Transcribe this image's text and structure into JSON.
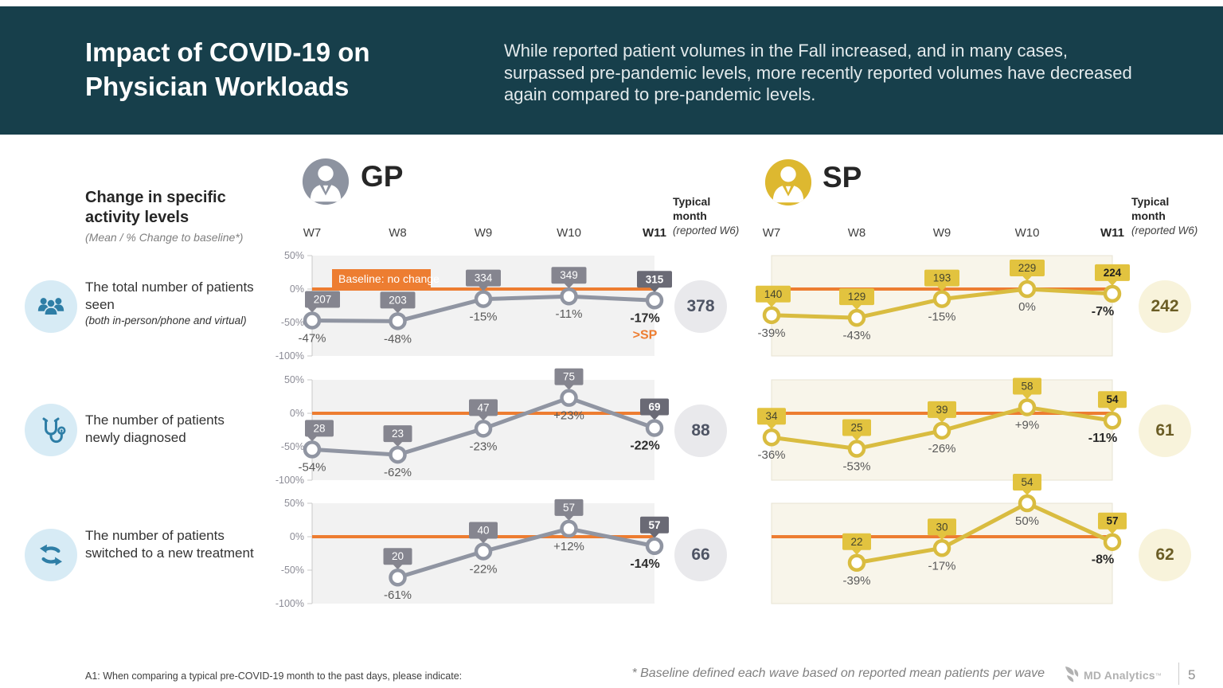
{
  "header": {
    "title_line1": "Impact of COVID-19 on",
    "title_line2": "Physician Workloads",
    "subtitle": "While reported patient volumes in the Fall increased, and in many cases, surpassed pre-pandemic levels, more recently reported volumes have decreased again compared to pre-pandemic levels."
  },
  "left_panel": {
    "heading": "Change in specific activity levels",
    "subheading": "(Mean / % Change to baseline*)",
    "activities": [
      {
        "label": "The total number of patients seen",
        "sublabel": "(both in-person/phone and virtual)",
        "icon": "patients-group-icon"
      },
      {
        "label": "The number of patients newly diagnosed",
        "icon": "stethoscope-icon"
      },
      {
        "label": "The number of patients switched to a new treatment",
        "icon": "switch-arrows-icon"
      }
    ]
  },
  "groups": {
    "gp": {
      "label": "GP"
    },
    "sp": {
      "label": "SP"
    }
  },
  "waves": [
    "W7",
    "W8",
    "W9",
    "W10",
    "W11"
  ],
  "typical_month": {
    "title_line1": "Typical",
    "title_line2": "month",
    "subtitle": "(reported W6)",
    "gp_values": [
      378,
      88,
      66
    ],
    "sp_values": [
      242,
      61,
      62
    ]
  },
  "chart_data": [
    {
      "group": "GP",
      "activity": "The total number of patients seen",
      "type": "line",
      "x": [
        "W7",
        "W8",
        "W9",
        "W10",
        "W11"
      ],
      "counts": [
        207,
        203,
        334,
        349,
        315
      ],
      "pct_change": [
        -47,
        -48,
        -15,
        -11,
        -17
      ],
      "pct_labels": [
        "-47%",
        "-48%",
        "-15%",
        "-11%",
        "-17%"
      ],
      "ylim": [
        -100,
        50
      ],
      "yticks": [
        "50%",
        "0%",
        "-50%",
        "-100%"
      ],
      "baseline_pct": 0,
      "baseline_label": "Baseline: no change",
      "annotation": ">SP",
      "typical_month_w6": 378
    },
    {
      "group": "GP",
      "activity": "The number of patients newly diagnosed",
      "type": "line",
      "x": [
        "W7",
        "W8",
        "W9",
        "W10",
        "W11"
      ],
      "counts": [
        28,
        23,
        47,
        75,
        69
      ],
      "pct_change": [
        -54,
        -62,
        -23,
        23,
        -22
      ],
      "pct_labels": [
        "-54%",
        "-62%",
        "-23%",
        "+23%",
        "-22%"
      ],
      "ylim": [
        -100,
        50
      ],
      "yticks": [
        "50%",
        "0%",
        "-50%",
        "-100%"
      ],
      "baseline_pct": 0,
      "typical_month_w6": 88
    },
    {
      "group": "GP",
      "activity": "The number of patients switched to a new treatment",
      "type": "line",
      "x": [
        "W7",
        "W8",
        "W9",
        "W10",
        "W11"
      ],
      "counts": [
        null,
        20,
        40,
        57,
        57
      ],
      "pct_change": [
        null,
        -61,
        -22,
        12,
        -14
      ],
      "pct_labels": [
        null,
        "-61%",
        "-22%",
        "+12%",
        "-14%"
      ],
      "ylim": [
        -100,
        50
      ],
      "yticks": [
        "50%",
        "0%",
        "-50%",
        "-100%"
      ],
      "baseline_pct": 0,
      "typical_month_w6": 66
    },
    {
      "group": "SP",
      "activity": "The total number of patients seen",
      "type": "line",
      "x": [
        "W7",
        "W8",
        "W9",
        "W10",
        "W11"
      ],
      "counts": [
        140,
        129,
        193,
        229,
        224
      ],
      "pct_change": [
        -39,
        -43,
        -15,
        0,
        -7
      ],
      "pct_labels": [
        "-39%",
        "-43%",
        "-15%",
        "0%",
        "-7%"
      ],
      "ylim": [
        -100,
        50
      ],
      "baseline_pct": 0,
      "typical_month_w6": 242
    },
    {
      "group": "SP",
      "activity": "The number of patients newly diagnosed",
      "type": "line",
      "x": [
        "W7",
        "W8",
        "W9",
        "W10",
        "W11"
      ],
      "counts": [
        34,
        25,
        39,
        58,
        54
      ],
      "pct_change": [
        -36,
        -53,
        -26,
        9,
        -11
      ],
      "pct_labels": [
        "-36%",
        "-53%",
        "-26%",
        "+9%",
        "-11%"
      ],
      "ylim": [
        -100,
        50
      ],
      "baseline_pct": 0,
      "typical_month_w6": 61
    },
    {
      "group": "SP",
      "activity": "The number of patients switched to a new treatment",
      "type": "line",
      "x": [
        "W7",
        "W8",
        "W9",
        "W10",
        "W11"
      ],
      "counts": [
        null,
        22,
        30,
        54,
        57
      ],
      "pct_change": [
        null,
        -39,
        -17,
        50,
        -8
      ],
      "pct_labels": [
        null,
        "-39%",
        "-17%",
        "50%",
        "-8%"
      ],
      "ylim": [
        -100,
        50
      ],
      "baseline_pct": 0,
      "typical_month_w6": 62
    }
  ],
  "colors": {
    "header_bg": "#173F4B",
    "baseline_orange": "#ED7D31",
    "gp_line": "#9095A2",
    "gp_badge": "#85858F",
    "gp_badge_final": "#6A6A75",
    "gp_plot_bg": "#F2F2F2",
    "gp_avatar": "#8D93A0",
    "sp_line": "#D9BC40",
    "sp_badge": "#E2C33F",
    "sp_plot_bg": "#F8F5EA",
    "sp_avatar": "#DDB830",
    "icon_blue": "#2E7EA6",
    "icon_circle_bg": "#D7EBF5"
  },
  "footer": {
    "question": "A1: When comparing a typical pre-COVID-19 month to the past days, please indicate:",
    "baseline_note": "* Baseline defined each wave based on reported mean patients per wave",
    "brand": "MD Analytics",
    "trademark": "™",
    "page_number": "5"
  }
}
